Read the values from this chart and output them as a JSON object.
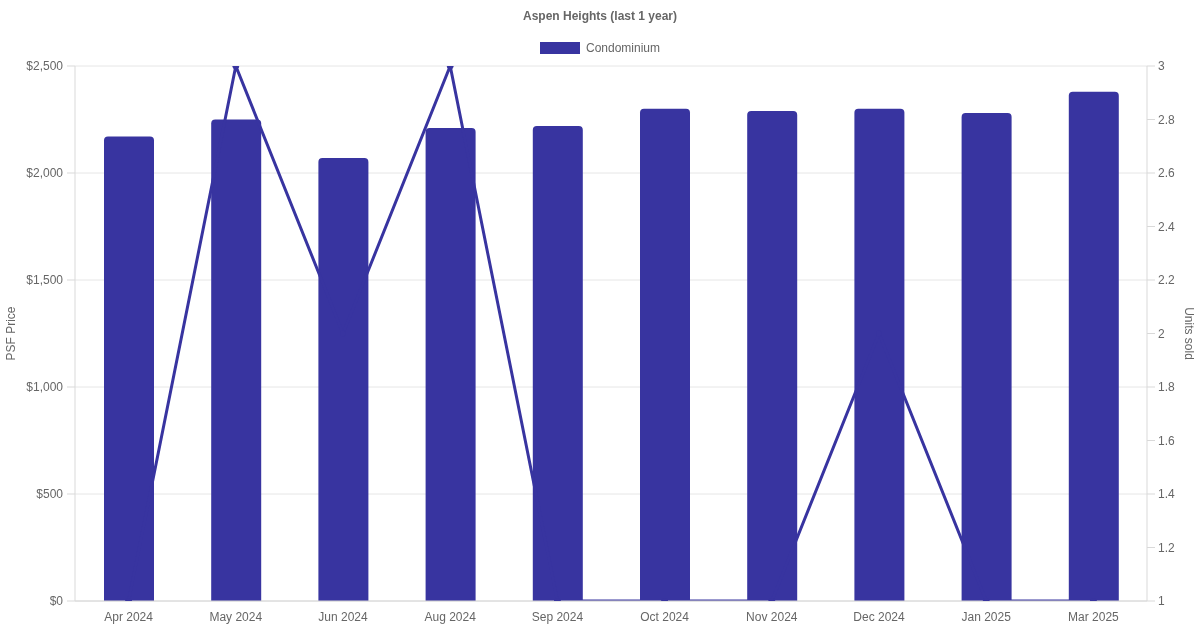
{
  "chart_data": {
    "type": "bar",
    "title": "Aspen Heights (last 1 year)",
    "ylabel": "PSF Price",
    "y2label": "Units sold",
    "categories": [
      "Apr 2024",
      "May 2024",
      "Jun 2024",
      "Aug 2024",
      "Sep 2024",
      "Oct 2024",
      "Nov 2024",
      "Dec 2024",
      "Jan 2025",
      "Mar 2025"
    ],
    "series": [
      {
        "name": "Condominium",
        "color": "#3834a0",
        "values": [
          2170,
          2250,
          2070,
          2210,
          2220,
          2300,
          2290,
          2300,
          2280,
          2380
        ]
      },
      {
        "type": "line",
        "axis": "y2",
        "color": "#3834a0",
        "values": [
          1,
          3,
          2,
          3,
          1,
          1,
          1,
          2,
          1,
          1
        ]
      }
    ],
    "ylim": [
      0,
      2500
    ],
    "yticks": [
      {
        "value": 0,
        "label": "$0"
      },
      {
        "value": 500,
        "label": "$500"
      },
      {
        "value": 1000,
        "label": "$1,000"
      },
      {
        "value": 1500,
        "label": "$1,500"
      },
      {
        "value": 2000,
        "label": "$2,000"
      },
      {
        "value": 2500,
        "label": "$2,500"
      }
    ],
    "y2lim": [
      1,
      3
    ],
    "y2ticks": [
      1,
      1.2,
      1.4,
      1.6,
      1.8,
      2,
      2.2,
      2.4,
      2.6,
      2.8,
      3
    ],
    "grid": "y",
    "legend": "top",
    "marker": "circle"
  }
}
